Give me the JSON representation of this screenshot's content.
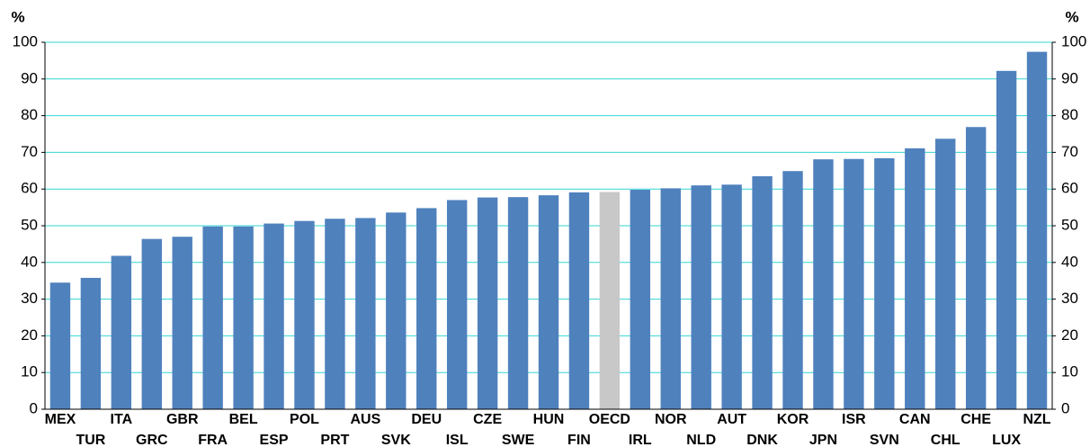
{
  "chart_data": {
    "type": "bar",
    "y_label": "%",
    "y2_label": "%",
    "categories": [
      "MEX",
      "TUR",
      "ITA",
      "GRC",
      "GBR",
      "FRA",
      "BEL",
      "ESP",
      "POL",
      "PRT",
      "AUS",
      "SVK",
      "DEU",
      "ISL",
      "CZE",
      "SWE",
      "HUN",
      "FIN",
      "OECD",
      "IRL",
      "NOR",
      "NLD",
      "AUT",
      "DNK",
      "KOR",
      "JPN",
      "ISR",
      "SVN",
      "CAN",
      "CHL",
      "CHE",
      "LUX",
      "NZL"
    ],
    "values": [
      34.5,
      35.8,
      41.8,
      46.4,
      47.0,
      49.8,
      49.8,
      50.6,
      51.3,
      51.9,
      52.1,
      53.6,
      54.8,
      57.0,
      57.7,
      57.8,
      58.3,
      59.1,
      59.2,
      59.8,
      60.2,
      61.0,
      61.2,
      63.5,
      64.9,
      68.1,
      68.2,
      68.4,
      71.1,
      73.7,
      76.9,
      92.2,
      97.4
    ],
    "colors": [
      "#4f81bd",
      "#4f81bd",
      "#4f81bd",
      "#4f81bd",
      "#4f81bd",
      "#4f81bd",
      "#4f81bd",
      "#4f81bd",
      "#4f81bd",
      "#4f81bd",
      "#4f81bd",
      "#4f81bd",
      "#4f81bd",
      "#4f81bd",
      "#4f81bd",
      "#4f81bd",
      "#4f81bd",
      "#4f81bd",
      "#c8c8c8",
      "#4f81bd",
      "#4f81bd",
      "#4f81bd",
      "#4f81bd",
      "#4f81bd",
      "#4f81bd",
      "#4f81bd",
      "#4f81bd",
      "#4f81bd",
      "#4f81bd",
      "#4f81bd",
      "#4f81bd",
      "#4f81bd",
      "#4f81bd"
    ],
    "ylim": [
      0,
      100
    ],
    "yticks": [
      0,
      10,
      20,
      30,
      40,
      50,
      60,
      70,
      80,
      90,
      100
    ],
    "y2lim": [
      0,
      100
    ],
    "y2ticks": [
      0,
      10,
      20,
      30,
      40,
      50,
      60,
      70,
      80,
      90,
      100
    ],
    "grid": true,
    "grid_color": "#33d6d6"
  }
}
